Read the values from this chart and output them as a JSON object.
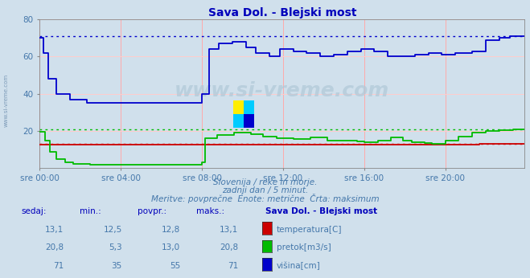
{
  "title": "Sava Dol. - Blejski most",
  "bg_color": "#d0e0ec",
  "plot_bg_color": "#d0e0ec",
  "title_color": "#0000bb",
  "text_color": "#4477aa",
  "grid_color_v": "#ffaaaa",
  "grid_color_h": "#ffcccc",
  "xlim": [
    0,
    287
  ],
  "ylim": [
    0,
    80
  ],
  "yticks": [
    20,
    40,
    60,
    80
  ],
  "xtick_labels": [
    "sre 00:00",
    "sre 04:00",
    "sre 08:00",
    "sre 12:00",
    "sre 16:00",
    "sre 20:00"
  ],
  "xtick_pos": [
    0,
    48,
    96,
    144,
    192,
    240
  ],
  "subtitle1": "Slovenija / reke in morje.",
  "subtitle2": "zadnji dan / 5 minut.",
  "subtitle3": "Meritve: povprečne  Enote: metrične  Črta: maksimum",
  "table_header_cols": [
    "sedaj:",
    "min.:",
    "povpr.:",
    "maks.:"
  ],
  "table_title": "Sava Dol. - Blejski most",
  "row1": [
    "13,1",
    "12,5",
    "12,8",
    "13,1",
    "temperatura[C]"
  ],
  "row2": [
    "20,8",
    "5,3",
    "13,0",
    "20,8",
    "pretok[m3/s]"
  ],
  "row3": [
    "71",
    "35",
    "55",
    "71",
    "višina[cm]"
  ],
  "temp_color": "#cc0000",
  "flow_color": "#00bb00",
  "height_color": "#0000cc",
  "temp_max": 13.1,
  "flow_max": 20.8,
  "height_max": 71,
  "watermark": "www.si-vreme.com",
  "left_label": "www.si-vreme.com"
}
